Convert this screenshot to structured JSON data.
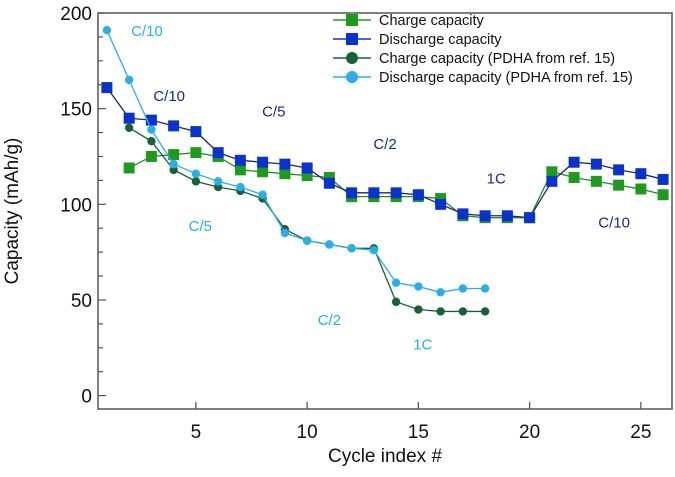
{
  "chart_data": {
    "type": "line",
    "title": "",
    "xlabel": "Cycle index #",
    "ylabel": "Capacity (mAh/g)",
    "xlim": [
      0.6,
      26.4
    ],
    "ylim": [
      -7,
      200
    ],
    "xticks": [
      5,
      10,
      15,
      20,
      25
    ],
    "yticks": [
      0,
      50,
      100,
      150,
      200
    ],
    "grid": false,
    "legend_position": "top-right",
    "series": [
      {
        "name": "Charge capacity",
        "color": "#1e9a1e",
        "marker": "square",
        "x": [
          2,
          3,
          4,
          5,
          6,
          7,
          8,
          9,
          10,
          11,
          12,
          13,
          14,
          15,
          16,
          17,
          18,
          19,
          20,
          21,
          22,
          23,
          24,
          25,
          26
        ],
        "y": [
          119,
          125,
          126,
          127,
          125,
          118,
          117,
          116,
          115,
          114,
          104,
          104,
          104,
          104,
          103,
          94,
          93,
          93,
          93,
          117,
          114,
          112,
          110,
          108,
          105
        ]
      },
      {
        "name": "Discharge capacity",
        "color": "#0a33cc",
        "marker": "square",
        "x": [
          1,
          2,
          3,
          4,
          5,
          6,
          7,
          8,
          9,
          10,
          11,
          12,
          13,
          14,
          15,
          16,
          17,
          18,
          19,
          20,
          21,
          22,
          23,
          24,
          25,
          26
        ],
        "y": [
          161,
          145,
          144,
          141,
          138,
          127,
          123,
          122,
          121,
          119,
          111,
          106,
          106,
          106,
          105,
          100,
          95,
          94,
          94,
          93,
          112,
          122,
          121,
          118,
          116,
          113
        ]
      },
      {
        "name": "Charge capacity (PDHA from ref. 15)",
        "color": "#17613a",
        "marker": "circle",
        "x": [
          2,
          3,
          4,
          5,
          6,
          7,
          8,
          9,
          10,
          11,
          12,
          13,
          14,
          15,
          16,
          17,
          18
        ],
        "y": [
          140,
          133,
          118,
          112,
          109,
          107,
          103,
          87,
          81,
          79,
          77,
          77,
          49,
          45,
          44,
          44,
          44
        ]
      },
      {
        "name": "Discharge capacity (PDHA from ref. 15)",
        "color": "#2aaee8",
        "marker": "circle",
        "x": [
          1,
          2,
          3,
          4,
          5,
          6,
          7,
          8,
          9,
          10,
          11,
          12,
          13,
          14,
          15,
          16,
          17,
          18
        ],
        "y": [
          191,
          165,
          139,
          121,
          116,
          112,
          109,
          105,
          85,
          81,
          79,
          77,
          76,
          59,
          57,
          54,
          56,
          56
        ]
      }
    ],
    "annotations": [
      {
        "text": "C/10",
        "x": 2.8,
        "y": 188,
        "color": "#2aaee8"
      },
      {
        "text": "C/10",
        "x": 3.8,
        "y": 154,
        "color": "#1a2a80"
      },
      {
        "text": "C/5",
        "x": 8.5,
        "y": 146,
        "color": "#1a2a80"
      },
      {
        "text": "C/2",
        "x": 13.5,
        "y": 129,
        "color": "#1a2a80"
      },
      {
        "text": "1C",
        "x": 18.5,
        "y": 111,
        "color": "#1a2a80"
      },
      {
        "text": "C/10",
        "x": 23.8,
        "y": 88,
        "color": "#1a2a80"
      },
      {
        "text": "C/5",
        "x": 5.2,
        "y": 86,
        "color": "#2aaee8"
      },
      {
        "text": "C/2",
        "x": 11,
        "y": 37,
        "color": "#2aaee8"
      },
      {
        "text": "1C",
        "x": 15.2,
        "y": 24,
        "color": "#2aaee8"
      }
    ]
  }
}
